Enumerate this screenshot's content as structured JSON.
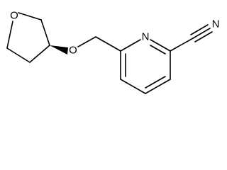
{
  "atoms": [
    {
      "label": "O"
    },
    {
      "label": "O"
    },
    {
      "label": "N"
    },
    {
      "label": "N"
    }
  ]
}
